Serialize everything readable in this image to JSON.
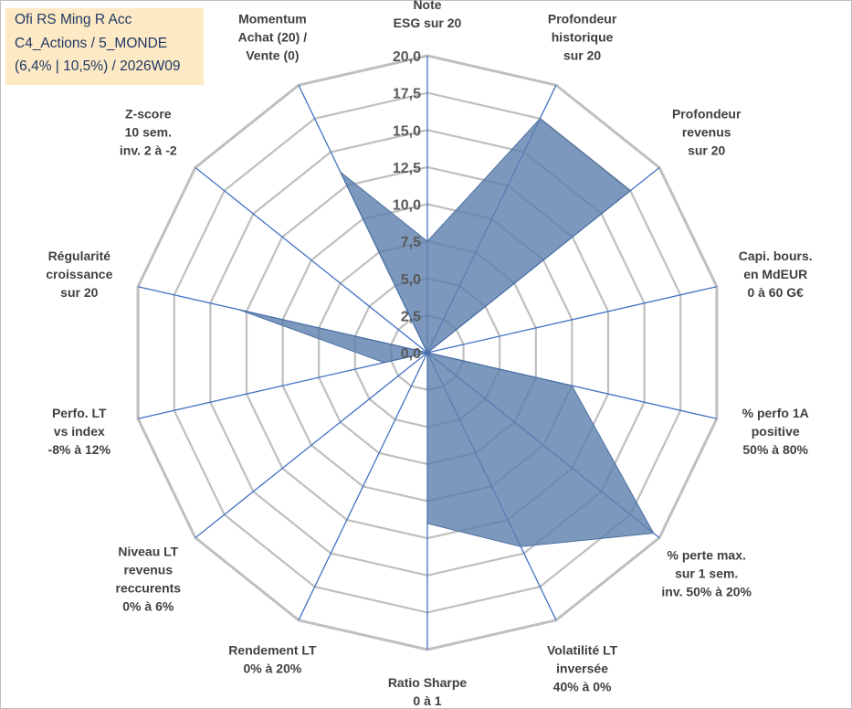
{
  "header": {
    "line1": "Ofi RS Ming R Acc",
    "line2": "C4_Actions / 5_MONDE",
    "line3": "(6,4% | 10,5%) / 2026W09"
  },
  "chart_data": {
    "type": "radar",
    "rmax": 20,
    "ticks": [
      "0,0",
      "2,5",
      "5,0",
      "7,5",
      "10,0",
      "12,5",
      "15,0",
      "17,5",
      "20,0"
    ],
    "grid_step": 2.5,
    "colors": {
      "fill": "#5b7fad",
      "fill_opacity": 0.8,
      "grid": "#bfbfbf",
      "spokes": "#4472c4"
    },
    "categories": [
      [
        "Note",
        "ESG sur 20"
      ],
      [
        "Profondeur",
        "historique",
        "sur 20"
      ],
      [
        "Profondeur",
        "revenus",
        "sur 20"
      ],
      [
        "Capi. bours.",
        "en MdEUR",
        "0 à 60 G€"
      ],
      [
        "% perfo 1A",
        "positive",
        "50% à 80%"
      ],
      [
        "% perte max.",
        "sur 1 sem.",
        "inv. 50% à 20%"
      ],
      [
        "Volatilité LT",
        "inversée",
        "40% à 0%"
      ],
      [
        "Ratio Sharpe",
        "0 à 1"
      ],
      [
        "Rendement LT",
        "0% à 20%"
      ],
      [
        "Niveau LT",
        "revenus",
        "reccurents",
        "0% à 6%"
      ],
      [
        "Perfo. LT",
        "vs index",
        "-8% à 12%"
      ],
      [
        "Régularité",
        "croissance",
        "sur 20"
      ],
      [
        "Z-score",
        "10 sem.",
        "inv. 2 à -2"
      ],
      [
        "Momentum",
        "Achat (20) /",
        "Vente (0)"
      ]
    ],
    "series": [
      {
        "values": [
          7.5,
          17.5,
          17.5,
          0,
          10,
          19.5,
          14.5,
          11.5,
          0,
          0,
          3,
          13,
          0,
          13.5
        ]
      }
    ]
  }
}
